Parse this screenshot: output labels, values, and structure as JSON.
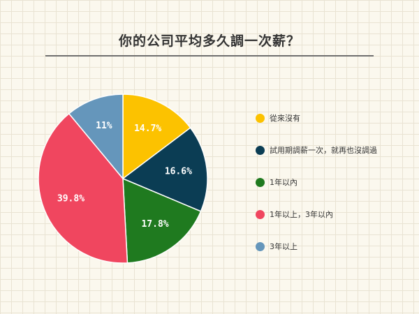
{
  "chart_data": {
    "type": "pie",
    "title": "你的公司平均多久調一次薪？",
    "slices": [
      {
        "label": "從來沒有",
        "value": 14.7,
        "display": "14.7%",
        "color": "#fcc200"
      },
      {
        "label": "試用期調薪一次，就再也沒調過",
        "value": 16.6,
        "display": "16.6%",
        "color": "#0b3d54"
      },
      {
        "label": "1年以內",
        "value": 17.8,
        "display": "17.8%",
        "color": "#1f7a1f"
      },
      {
        "label": "1年以上，3年以內",
        "value": 39.8,
        "display": "39.8%",
        "color": "#f0465f"
      },
      {
        "label": "3年以上",
        "value": 11,
        "display": "11%",
        "color": "#6596bb"
      }
    ],
    "legend": "right",
    "grid": false
  }
}
